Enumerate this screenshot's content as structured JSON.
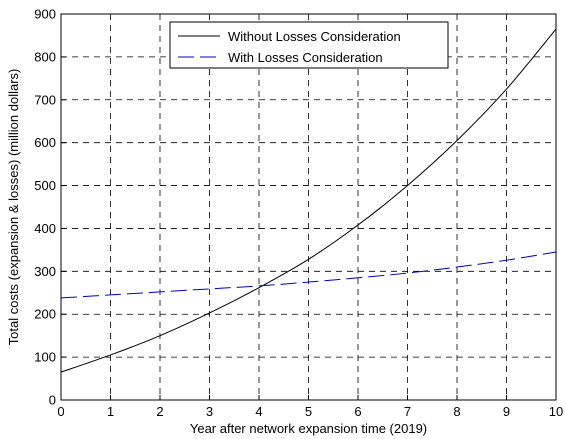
{
  "chart_data": {
    "type": "line",
    "title": "",
    "xlabel": "Year after network expansion time (2019)",
    "ylabel": "Total costs (expansion & losses) (million dollars)",
    "xlim": [
      0,
      10
    ],
    "ylim": [
      0,
      900
    ],
    "xticks": [
      "0",
      "1",
      "2",
      "3",
      "4",
      "5",
      "6",
      "7",
      "8",
      "9",
      "10"
    ],
    "yticks": [
      "0",
      "100",
      "200",
      "300",
      "400",
      "500",
      "600",
      "700",
      "800",
      "900"
    ],
    "grid": true,
    "legend_position": "top-center",
    "x": [
      0,
      1,
      2,
      3,
      4,
      5,
      6,
      7,
      8,
      9,
      10
    ],
    "series": [
      {
        "name": "Without Losses Consideration",
        "color": "#000000",
        "dash": "solid",
        "values": [
          65,
          105,
          150,
          203,
          262,
          328,
          408,
          500,
          605,
          725,
          865
        ]
      },
      {
        "name": "With Losses Consideration",
        "color": "#0000cc",
        "dash": "dashed",
        "values": [
          238,
          245,
          252,
          259,
          266,
          275,
          285,
          296,
          310,
          326,
          345
        ]
      }
    ]
  }
}
